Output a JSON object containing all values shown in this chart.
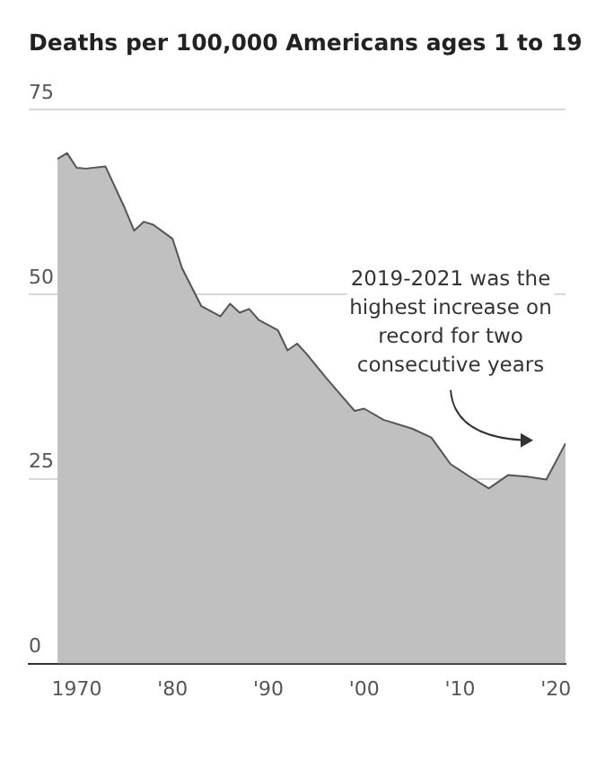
{
  "chart_data": {
    "type": "area",
    "title": "Deaths per 100,000 Americans ages 1 to 19",
    "x": [
      1968,
      1969,
      1970,
      1971,
      1973,
      1975,
      1976,
      1977,
      1978,
      1980,
      1981,
      1983,
      1985,
      1986,
      1987,
      1988,
      1989,
      1991,
      1992,
      1993,
      1994,
      1996,
      1998,
      1999,
      2000,
      2002,
      2005,
      2007,
      2009,
      2011,
      2013,
      2015,
      2017,
      2019,
      2021
    ],
    "series": [
      {
        "color": "#c0c0c0",
        "values": [
          68.3,
          69.1,
          67.1,
          67,
          67.3,
          61.7,
          58.6,
          59.8,
          59.4,
          57.5,
          53.5,
          48.4,
          47,
          48.7,
          47.5,
          48,
          46.5,
          45.1,
          42.4,
          43.3,
          41.9,
          38.7,
          35.7,
          34.2,
          34.5,
          33,
          31.8,
          30.6,
          27,
          25.3,
          23.7,
          25.5,
          25.3,
          24.9,
          29.8
        ]
      }
    ],
    "xlim": [
      1965,
      2021
    ],
    "xticks": [
      1970,
      {
        "value": 1980,
        "label": "'80"
      },
      {
        "value": 1990,
        "label": "'90"
      },
      {
        "value": 2000,
        "label": "'00"
      },
      {
        "value": 2010,
        "label": "'10"
      },
      {
        "value": 2020,
        "label": "'20"
      }
    ],
    "ylim": [
      0,
      75
    ],
    "yticks": [
      0,
      25,
      50,
      75
    ],
    "grid": "y",
    "legend": false,
    "annotations": [
      "2019-2021 was the highest increase on record for two consecutive years"
    ]
  }
}
